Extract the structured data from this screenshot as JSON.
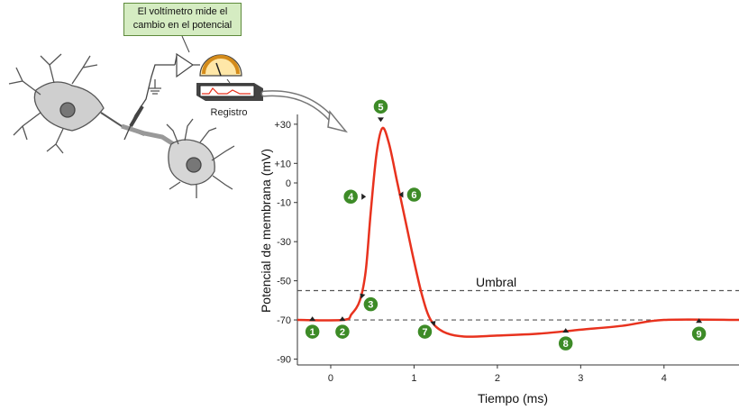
{
  "callout": {
    "line1": "El voltímetro mide el",
    "line2": "cambio en el potencial"
  },
  "recorder_label": "Registro",
  "chart_data": {
    "type": "line",
    "xlabel": "Tiempo (ms)",
    "ylabel": "Potencial de membrana (mV)",
    "x_ticks": [
      0,
      1,
      2,
      3,
      4
    ],
    "y_ticks": [
      30,
      10,
      0,
      -10,
      -30,
      -50,
      -70,
      -90
    ],
    "y_tick_labels": [
      "+30",
      "+10",
      "0",
      "-10",
      "-30",
      "-50",
      "-70",
      "-90"
    ],
    "xlim": [
      -0.4,
      4.9
    ],
    "ylim": [
      -93,
      35
    ],
    "threshold": {
      "label": "Umbral",
      "value": -55
    },
    "resting_line": -70,
    "series": [
      {
        "color": "#e8321e",
        "points": [
          [
            -0.4,
            -70
          ],
          [
            0.15,
            -70
          ],
          [
            0.25,
            -67
          ],
          [
            0.35,
            -60
          ],
          [
            0.42,
            -45
          ],
          [
            0.48,
            -15
          ],
          [
            0.55,
            15
          ],
          [
            0.62,
            28
          ],
          [
            0.7,
            20
          ],
          [
            0.8,
            0
          ],
          [
            0.9,
            -20
          ],
          [
            1.0,
            -40
          ],
          [
            1.1,
            -58
          ],
          [
            1.2,
            -70
          ],
          [
            1.35,
            -76
          ],
          [
            1.6,
            -78.5
          ],
          [
            2.0,
            -78
          ],
          [
            2.5,
            -77
          ],
          [
            3.0,
            -75
          ],
          [
            3.5,
            -73
          ],
          [
            4.0,
            -70
          ],
          [
            4.9,
            -70
          ]
        ]
      }
    ],
    "markers": [
      {
        "label": "1",
        "x": -0.22,
        "y": -76,
        "arrow": "up"
      },
      {
        "label": "2",
        "x": 0.14,
        "y": -76,
        "arrow": "up"
      },
      {
        "label": "3",
        "x": 0.48,
        "y": -62,
        "arrow": "left-up"
      },
      {
        "label": "4",
        "x": 0.24,
        "y": -7,
        "arrow": "right"
      },
      {
        "label": "5",
        "x": 0.6,
        "y": 39,
        "arrow": "down"
      },
      {
        "label": "6",
        "x": 1.0,
        "y": -6,
        "arrow": "left"
      },
      {
        "label": "7",
        "x": 1.13,
        "y": -76,
        "arrow": "right-up"
      },
      {
        "label": "8",
        "x": 2.82,
        "y": -82,
        "arrow": "up"
      },
      {
        "label": "9",
        "x": 4.42,
        "y": -77,
        "arrow": "up"
      }
    ],
    "grid": false
  },
  "colors": {
    "trace": "#e8321e",
    "marker": "#3d8b27",
    "axis": "#333333",
    "dashed": "#555555"
  }
}
